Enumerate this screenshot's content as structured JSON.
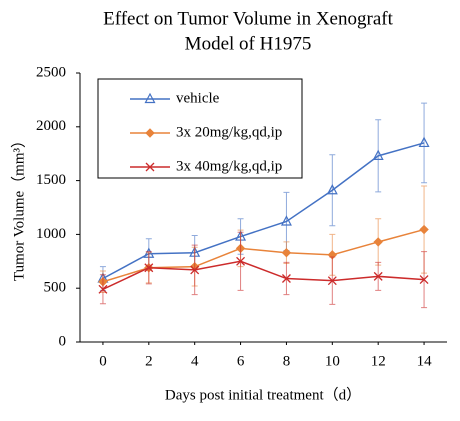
{
  "chart_data": {
    "type": "line",
    "title": [
      "Effect on Tumor Volume in Xenograft",
      "Model of  H1975"
    ],
    "x_label": "Days post initial treatment（d）",
    "y_label": "Tumor Volume（mm³）",
    "x": [
      0,
      2,
      4,
      6,
      8,
      10,
      12,
      14
    ],
    "xlim": [
      -1,
      15
    ],
    "xticks": [
      0,
      2,
      4,
      6,
      8,
      10,
      12,
      14
    ],
    "ylim": [
      0,
      2500
    ],
    "yticks": [
      0,
      500,
      1000,
      1500,
      2000,
      2500
    ],
    "series": [
      {
        "name": "vehicle",
        "color": "#4472c4",
        "marker": "triangle",
        "values": [
          590,
          820,
          830,
          980,
          1120,
          1410,
          1730,
          1850
        ],
        "error": [
          110,
          140,
          160,
          165,
          270,
          330,
          335,
          370
        ]
      },
      {
        "name": "3x 20mg/kg,qd,ip",
        "color": "#e8833a",
        "marker": "diamond",
        "values": [
          560,
          690,
          700,
          870,
          830,
          810,
          930,
          1045
        ],
        "error": [
          100,
          140,
          180,
          170,
          100,
          190,
          215,
          405
        ]
      },
      {
        "name": "3x 40mg/kg,qd,ip",
        "color": "#cc2b2b",
        "marker": "x",
        "values": [
          490,
          690,
          670,
          750,
          590,
          570,
          610,
          580
        ],
        "error": [
          135,
          150,
          230,
          270,
          150,
          220,
          130,
          260
        ]
      }
    ]
  }
}
